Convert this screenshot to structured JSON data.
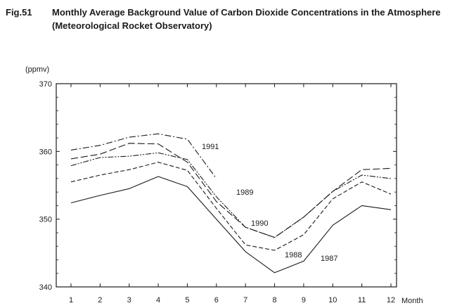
{
  "figure": {
    "number": "Fig.51",
    "title_line1": "Monthly Average Background Value of Carbon Dioxide Concentrations in the Atmosphere",
    "title_line2": "(Meteorological Rocket Observatory)"
  },
  "chart_data": {
    "type": "line",
    "title": "Monthly Average Background Value of Carbon Dioxide Concentrations in the Atmosphere (Meteorological Rocket Observatory)",
    "xlabel": "Month",
    "ylabel": "(ppmv)",
    "x": [
      1,
      2,
      3,
      4,
      5,
      6,
      7,
      8,
      9,
      10,
      11,
      12
    ],
    "x_tick_labels": [
      "1",
      "2",
      "3",
      "4",
      "5",
      "6",
      "7",
      "8",
      "9",
      "10",
      "11",
      "12"
    ],
    "y_ticks": [
      340,
      350,
      360,
      370
    ],
    "y_tick_labels": [
      "340",
      "350",
      "360",
      "370"
    ],
    "xlim": [
      0.5,
      12.5
    ],
    "ylim": [
      340,
      370
    ],
    "grid": false,
    "legend": "none (series labeled directly on chart)",
    "series": [
      {
        "name": "1987",
        "style": "solid",
        "values": [
          352.4,
          353.5,
          354.5,
          356.3,
          354.8,
          350.0,
          345.2,
          342.1,
          343.8,
          349.1,
          352.0,
          351.4
        ]
      },
      {
        "name": "1988",
        "style": "dashed",
        "values": [
          355.5,
          356.5,
          357.3,
          358.4,
          357.2,
          351.6,
          346.2,
          345.4,
          347.7,
          353.0,
          355.5,
          353.7
        ]
      },
      {
        "name": "1989",
        "style": "dash-dot-dot",
        "values": [
          357.9,
          359.1,
          359.3,
          359.8,
          358.8,
          353.3,
          348.8,
          347.3,
          350.3,
          354.1,
          356.5,
          356.0
        ]
      },
      {
        "name": "1990",
        "style": "long-dash",
        "values": [
          358.9,
          359.6,
          361.2,
          361.1,
          358.4,
          352.6,
          348.8,
          347.3,
          350.3,
          354.1,
          357.3,
          357.5
        ]
      },
      {
        "name": "1991",
        "style": "dash-dot",
        "values": [
          360.2,
          360.9,
          362.1,
          362.6,
          361.8,
          356.0,
          null,
          null,
          null,
          null,
          null,
          null
        ]
      }
    ]
  }
}
